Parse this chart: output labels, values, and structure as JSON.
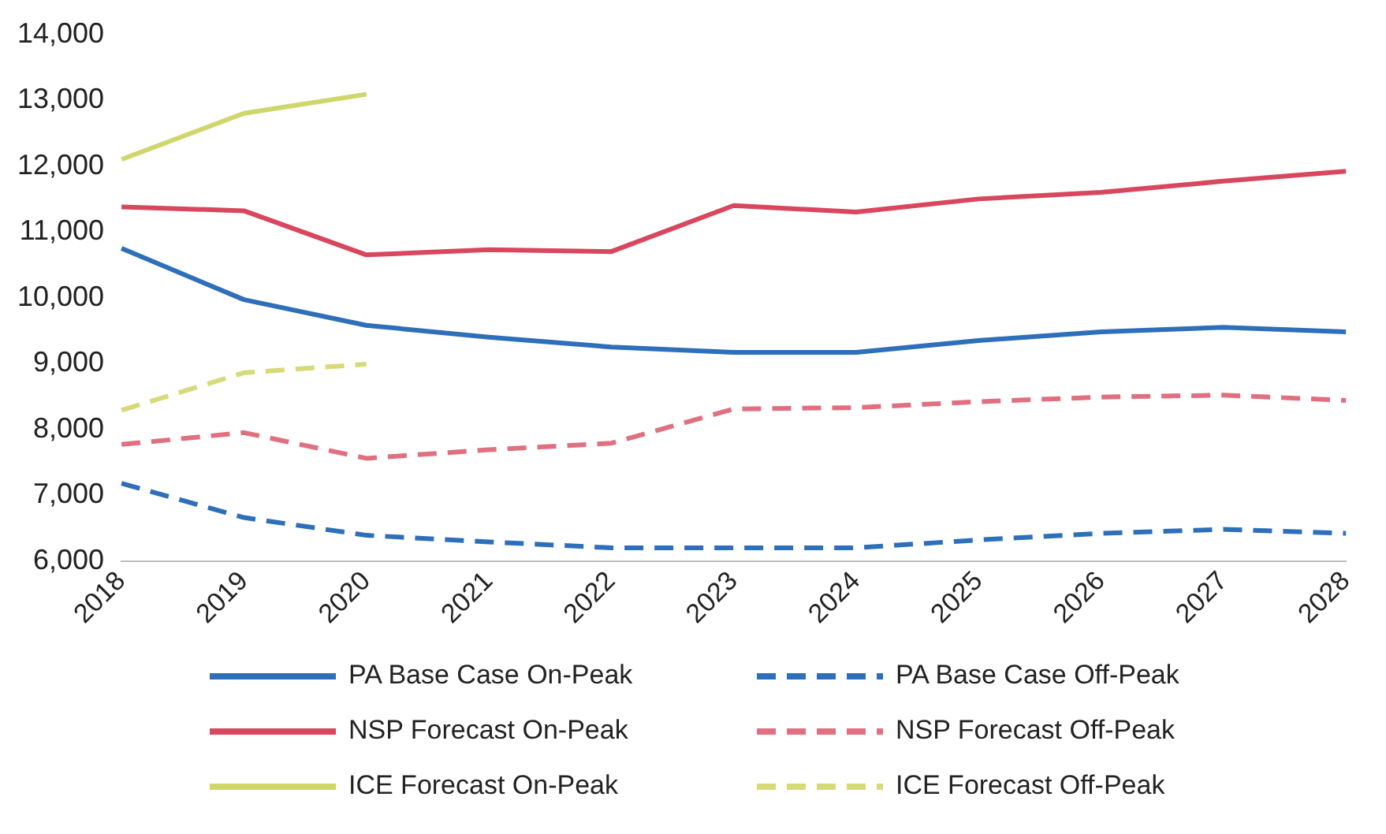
{
  "chart_data": {
    "type": "line",
    "categories": [
      "2018",
      "2019",
      "2020",
      "2021",
      "2022",
      "2023",
      "2024",
      "2025",
      "2026",
      "2027",
      "2028"
    ],
    "ylim": [
      6000,
      14000
    ],
    "yticks": [
      {
        "value": 6000,
        "label": "6,000"
      },
      {
        "value": 7000,
        "label": "7,000"
      },
      {
        "value": 8000,
        "label": "8,000"
      },
      {
        "value": 9000,
        "label": "9,000"
      },
      {
        "value": 10000,
        "label": "10,000"
      },
      {
        "value": 11000,
        "label": "11,000"
      },
      {
        "value": 12000,
        "label": "12,000"
      },
      {
        "value": 13000,
        "label": "13,000"
      },
      {
        "value": 14000,
        "label": "14,000"
      }
    ],
    "grid": false,
    "legend": "bottom",
    "marker": "none",
    "series": [
      {
        "name": "PA Base Case On-Peak",
        "color": "#2e6fba",
        "line_style": "solid",
        "values": [
          10750,
          9970,
          9580,
          9400,
          9250,
          9170,
          9170,
          9350,
          9480,
          9550,
          9480
        ]
      },
      {
        "name": "PA Base Case Off-Peak",
        "color": "#2e6fba",
        "line_style": "dashed",
        "values": [
          7180,
          6660,
          6390,
          6290,
          6200,
          6200,
          6200,
          6320,
          6420,
          6480,
          6420
        ]
      },
      {
        "name": "NSP Forecast On-Peak",
        "color": "#d9475e",
        "line_style": "solid",
        "values": [
          11380,
          11320,
          10650,
          10730,
          10700,
          11400,
          11300,
          11500,
          11600,
          11770,
          11920
        ]
      },
      {
        "name": "NSP Forecast Off-Peak",
        "color": "#e0707f",
        "line_style": "dashed",
        "values": [
          7770,
          7950,
          7560,
          7690,
          7790,
          8310,
          8330,
          8420,
          8490,
          8520,
          8440
        ]
      },
      {
        "name": "ICE Forecast On-Peak",
        "color": "#cfd66a",
        "line_style": "solid",
        "values": [
          12100,
          12800,
          13090,
          null,
          null,
          null,
          null,
          null,
          null,
          null,
          null
        ]
      },
      {
        "name": "ICE Forecast Off-Peak",
        "color": "#d6da78",
        "line_style": "dashed",
        "values": [
          8290,
          8860,
          8990,
          null,
          null,
          null,
          null,
          null,
          null,
          null,
          null
        ]
      }
    ]
  }
}
